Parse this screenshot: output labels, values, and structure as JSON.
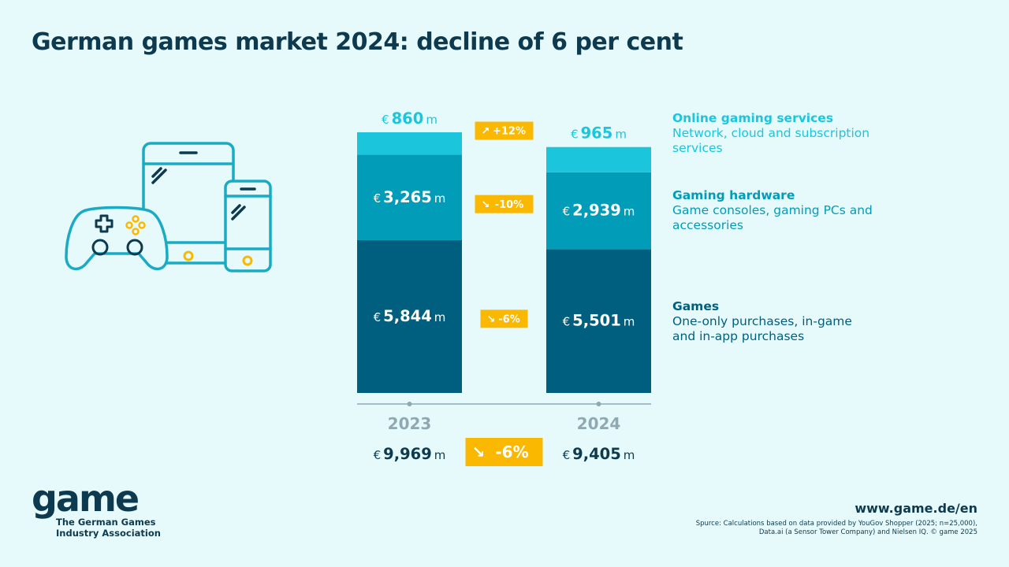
{
  "title": "German games market 2024: decline of 6 per cent",
  "chart_data": {
    "type": "bar",
    "stacked": true,
    "categories": [
      "2023",
      "2024"
    ],
    "unit_prefix": "€",
    "unit_suffix": "m",
    "series": [
      {
        "key": "games",
        "name": "Games",
        "description": "One-only purchases, in-game and in-app purchases",
        "values": [
          5844,
          5501
        ],
        "labels": [
          "5,844",
          "5,501"
        ],
        "change": "-6%",
        "color": "#005f7e"
      },
      {
        "key": "hardware",
        "name": "Gaming hardware",
        "description": "Game consoles, gaming PCs and accessories",
        "values": [
          3265,
          2939
        ],
        "labels": [
          "3,265",
          "2,939"
        ],
        "change": "-10%",
        "color": "#009cb8"
      },
      {
        "key": "online",
        "name": "Online gaming services",
        "description": "Network, cloud and subscription services",
        "values": [
          860,
          965
        ],
        "labels": [
          "860",
          "965"
        ],
        "change": "+12%",
        "color": "#1bc6dc"
      }
    ],
    "totals": [
      9969,
      9405
    ],
    "total_labels": [
      "9,969",
      "9,405"
    ],
    "total_change": "-6%",
    "change_badge_color": "#fbb800"
  },
  "footer": {
    "logo_word": "game",
    "logo_subtitle": "The German Games Industry Association",
    "website": "www.game.de/en",
    "source_line1": "Spurce: Calculations based on data provided by YouGov Shopper (2025; n=25,000),",
    "source_line2": "Data.ai (a Sensor Tower Company) and Nielsen IQ. © game 2025"
  },
  "icons": [
    "gamepad-icon",
    "tablet-icon",
    "smartphone-icon"
  ]
}
